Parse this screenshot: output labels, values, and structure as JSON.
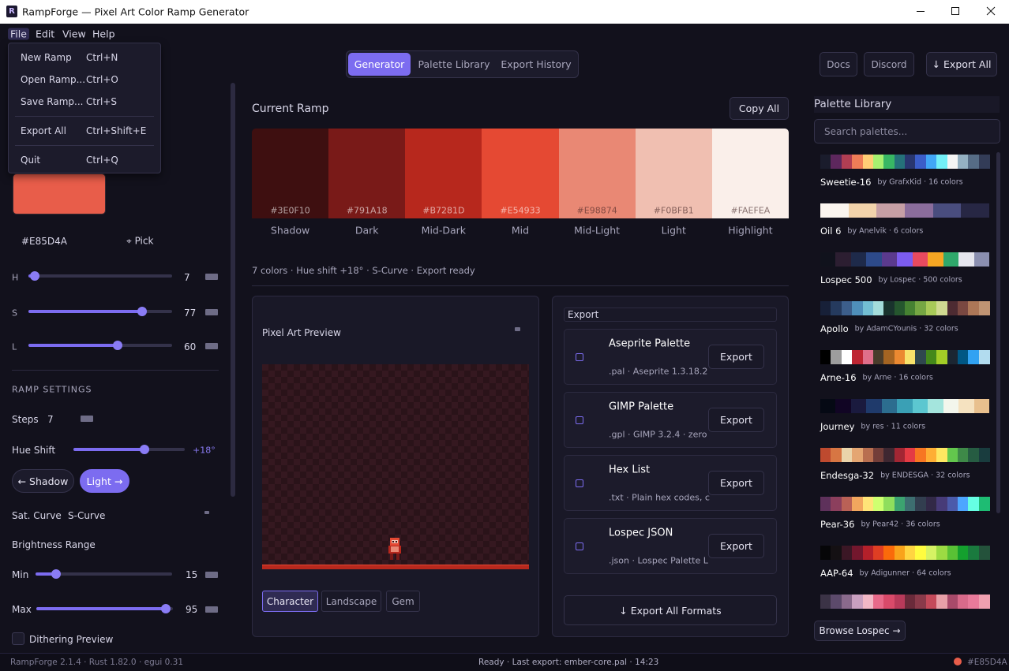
{
  "window": {
    "title": "RampForge — Pixel Art Color Ramp Generator"
  },
  "menu": {
    "items": [
      "File",
      "Edit",
      "View",
      "Help"
    ],
    "file_menu": [
      {
        "label": "New Ramp",
        "shortcut": "Ctrl+N"
      },
      {
        "label": "Open Ramp...",
        "shortcut": "Ctrl+O"
      },
      {
        "label": "Save Ramp...",
        "shortcut": "Ctrl+S"
      },
      {
        "label": "Export All",
        "shortcut": "Ctrl+Shift+E"
      },
      {
        "label": "Quit",
        "shortcut": "Ctrl+Q"
      }
    ]
  },
  "tabs": [
    "Generator",
    "Palette Library",
    "Export History"
  ],
  "top_buttons": [
    "Docs",
    "Discord",
    "↓ Export All"
  ],
  "left": {
    "base_color": "#E85D4A",
    "hex": "#E85D4A",
    "pick": "⌖ Pick",
    "sliders": [
      {
        "label": "H",
        "value": 7
      },
      {
        "label": "S",
        "value": 77
      },
      {
        "label": "L",
        "value": 60
      }
    ],
    "ramp_settings_title": "RAMP SETTINGS",
    "steps": {
      "label": "Steps",
      "value": 7
    },
    "hue_shift": {
      "label": "Hue Shift",
      "value_label": "+18°"
    },
    "direction_buttons": [
      "← Shadow",
      "Light →"
    ],
    "sat_curve": {
      "label": "Sat. Curve",
      "value": "S-Curve"
    },
    "brightness": {
      "label": "Brightness Range",
      "min": {
        "label": "Min",
        "value": 15
      },
      "max": {
        "label": "Max",
        "value": 95
      }
    },
    "dithering": "Dithering Preview"
  },
  "center": {
    "title": "Current Ramp",
    "copy_button": "Copy All",
    "ramp": [
      {
        "hex": "#3E0F10",
        "name": "Shadow"
      },
      {
        "hex": "#791A18",
        "name": "Dark"
      },
      {
        "hex": "#B7281D",
        "name": "Mid-Dark"
      },
      {
        "hex": "#E54933",
        "name": "Mid"
      },
      {
        "hex": "#E98874",
        "name": "Mid-Light"
      },
      {
        "hex": "#F0BFB1",
        "name": "Light"
      },
      {
        "hex": "#FAEFEA",
        "name": "Highlight"
      }
    ],
    "info": "7 colors · Hue shift +18° · S-Curve · Export ready",
    "preview": {
      "title": "Pixel Art Preview",
      "tabs": [
        "Character",
        "Landscape",
        "Gem"
      ]
    },
    "export": {
      "title": "Export",
      "formats": [
        {
          "name": "Aseprite Palette",
          "desc": ".pal · Aseprite 1.3.18.2",
          "button": "Export"
        },
        {
          "name": "GIMP Palette",
          "desc": ".gpl · GIMP 3.2.4 · zero",
          "button": "Export"
        },
        {
          "name": "Hex List",
          "desc": ".txt · Plain hex codes, c",
          "button": "Export"
        },
        {
          "name": "Lospec JSON",
          "desc": ".json · Lospec Palette L",
          "button": "Export"
        }
      ],
      "all_button": "↓ Export All Formats"
    }
  },
  "library": {
    "title": "Palette Library",
    "search_placeholder": "Search palettes...",
    "palettes": [
      {
        "name": "Sweetie-16",
        "by_line": "by GrafxKid · 16 colors",
        "colors": [
          "#1a1c2c",
          "#5d275d",
          "#b13e53",
          "#ef7d57",
          "#ffcd75",
          "#a7f070",
          "#38b764",
          "#257179",
          "#29366f",
          "#3b5dc9",
          "#41a6f6",
          "#73eff7",
          "#f4f4f4",
          "#94b0c2",
          "#566c86",
          "#333c57"
        ]
      },
      {
        "name": "Oil 6",
        "by_line": "by Anelvik · 6 colors",
        "colors": [
          "#fbf5ef",
          "#f2d3ab",
          "#c69fa5",
          "#8b6d9c",
          "#494d7e",
          "#272744"
        ]
      },
      {
        "name": "Lospec 500",
        "by_line": "by Lospec · 500 colors",
        "colors": [
          "#10121c",
          "#2c1e31",
          "#1e2a4a",
          "#2d4a8a",
          "#5b3a8e",
          "#7c5cf0",
          "#e84a5f",
          "#f5a623",
          "#2fa86b",
          "#e6e6ee",
          "#8b8fb0"
        ]
      },
      {
        "name": "Apollo",
        "by_line": "by AdamCYounis · 32 colors",
        "colors": [
          "#172038",
          "#253a5e",
          "#3c5e8b",
          "#4f8fba",
          "#73bed3",
          "#a4dddb",
          "#19332d",
          "#25562e",
          "#468232",
          "#75a743",
          "#a8ca58",
          "#d0da91",
          "#4d2b32",
          "#7a4841",
          "#ad7757",
          "#c09473"
        ]
      },
      {
        "name": "Arne-16",
        "by_line": "by Arne · 16 colors",
        "colors": [
          "#000000",
          "#9d9d9d",
          "#ffffff",
          "#be2633",
          "#e06f8b",
          "#493c2b",
          "#a46422",
          "#eb8931",
          "#f7e26b",
          "#2f484e",
          "#44891a",
          "#a3ce27",
          "#1b2632",
          "#005784",
          "#31a2f2",
          "#b2dcef"
        ]
      },
      {
        "name": "Journey",
        "by_line": "by res · 11 colors",
        "colors": [
          "#050914",
          "#110524",
          "#1a1a3e",
          "#1f3a6b",
          "#2c6d8f",
          "#3aa0b5",
          "#5cc7d0",
          "#a4e5dd",
          "#f3f6ec",
          "#f5e2c0",
          "#e8c08e"
        ]
      },
      {
        "name": "Endesga-32",
        "by_line": "by ENDESGA · 32 colors",
        "colors": [
          "#be4a2f",
          "#d77643",
          "#ead4aa",
          "#e4a672",
          "#b86f50",
          "#733e39",
          "#3e2731",
          "#a22633",
          "#e43b44",
          "#f77622",
          "#feae34",
          "#fee761",
          "#63c74d",
          "#3e8948",
          "#265c42",
          "#193c3e"
        ]
      },
      {
        "name": "Pear-36",
        "by_line": "by Pear42 · 36 colors",
        "colors": [
          "#5e315b",
          "#8c3f5d",
          "#ba6156",
          "#f2a65e",
          "#ffe478",
          "#cfff70",
          "#8fde5d",
          "#3ca370",
          "#3d6e70",
          "#323e4f",
          "#322947",
          "#473b78",
          "#4b5bab",
          "#4da6ff",
          "#66ffe3",
          "#1ebc73"
        ]
      },
      {
        "name": "AAP-64",
        "by_line": "by Adigunner · 64 colors",
        "colors": [
          "#060608",
          "#141013",
          "#3b1725",
          "#73172d",
          "#b4202a",
          "#df3e23",
          "#fa6a0a",
          "#f9a31b",
          "#ffd541",
          "#fffc40",
          "#d6f264",
          "#9cdb43",
          "#59c135",
          "#14a02e",
          "#1a7a3e",
          "#24523b"
        ]
      },
      {
        "colors": [
          "#3b3346",
          "#5c4a6b",
          "#8a6a8c",
          "#c9a0c0",
          "#f2b8c6",
          "#e86a8a",
          "#d94a6a",
          "#b83a5a",
          "#6a2a3a",
          "#8a3a4a",
          "#c44a5a",
          "#e8a0a8",
          "#a84a6a",
          "#d86a8a",
          "#e87a9a",
          "#f0a0b0"
        ]
      }
    ],
    "browse_button": "Browse Lospec →"
  },
  "status": {
    "left": "RampForge 2.1.4 · Rust 1.82.0 · egui 0.31",
    "center": "Ready · Last export: ember-core.pal · 14:23",
    "dot_color": "#E85D4A",
    "right": "#E85D4A"
  }
}
